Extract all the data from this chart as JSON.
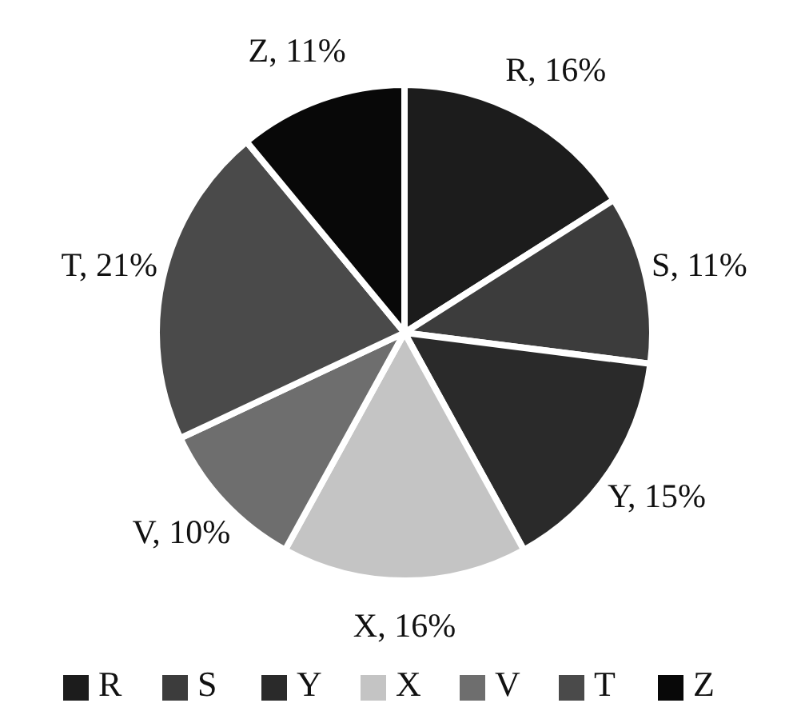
{
  "chart_data": {
    "type": "pie",
    "categories": [
      "R",
      "S",
      "Y",
      "X",
      "V",
      "T",
      "Z"
    ],
    "values": [
      16,
      11,
      15,
      16,
      10,
      21,
      11
    ],
    "colors": [
      "#1c1c1c",
      "#3c3c3c",
      "#2a2a2a",
      "#c4c4c4",
      "#6e6e6e",
      "#4a4a4a",
      "#080808"
    ],
    "value_labels": [
      "R, 16%",
      "S, 11%",
      "Y, 15%",
      "X, 16%",
      "V, 10%",
      "T, 21%",
      "Z, 11%"
    ],
    "legend": "bottom"
  }
}
